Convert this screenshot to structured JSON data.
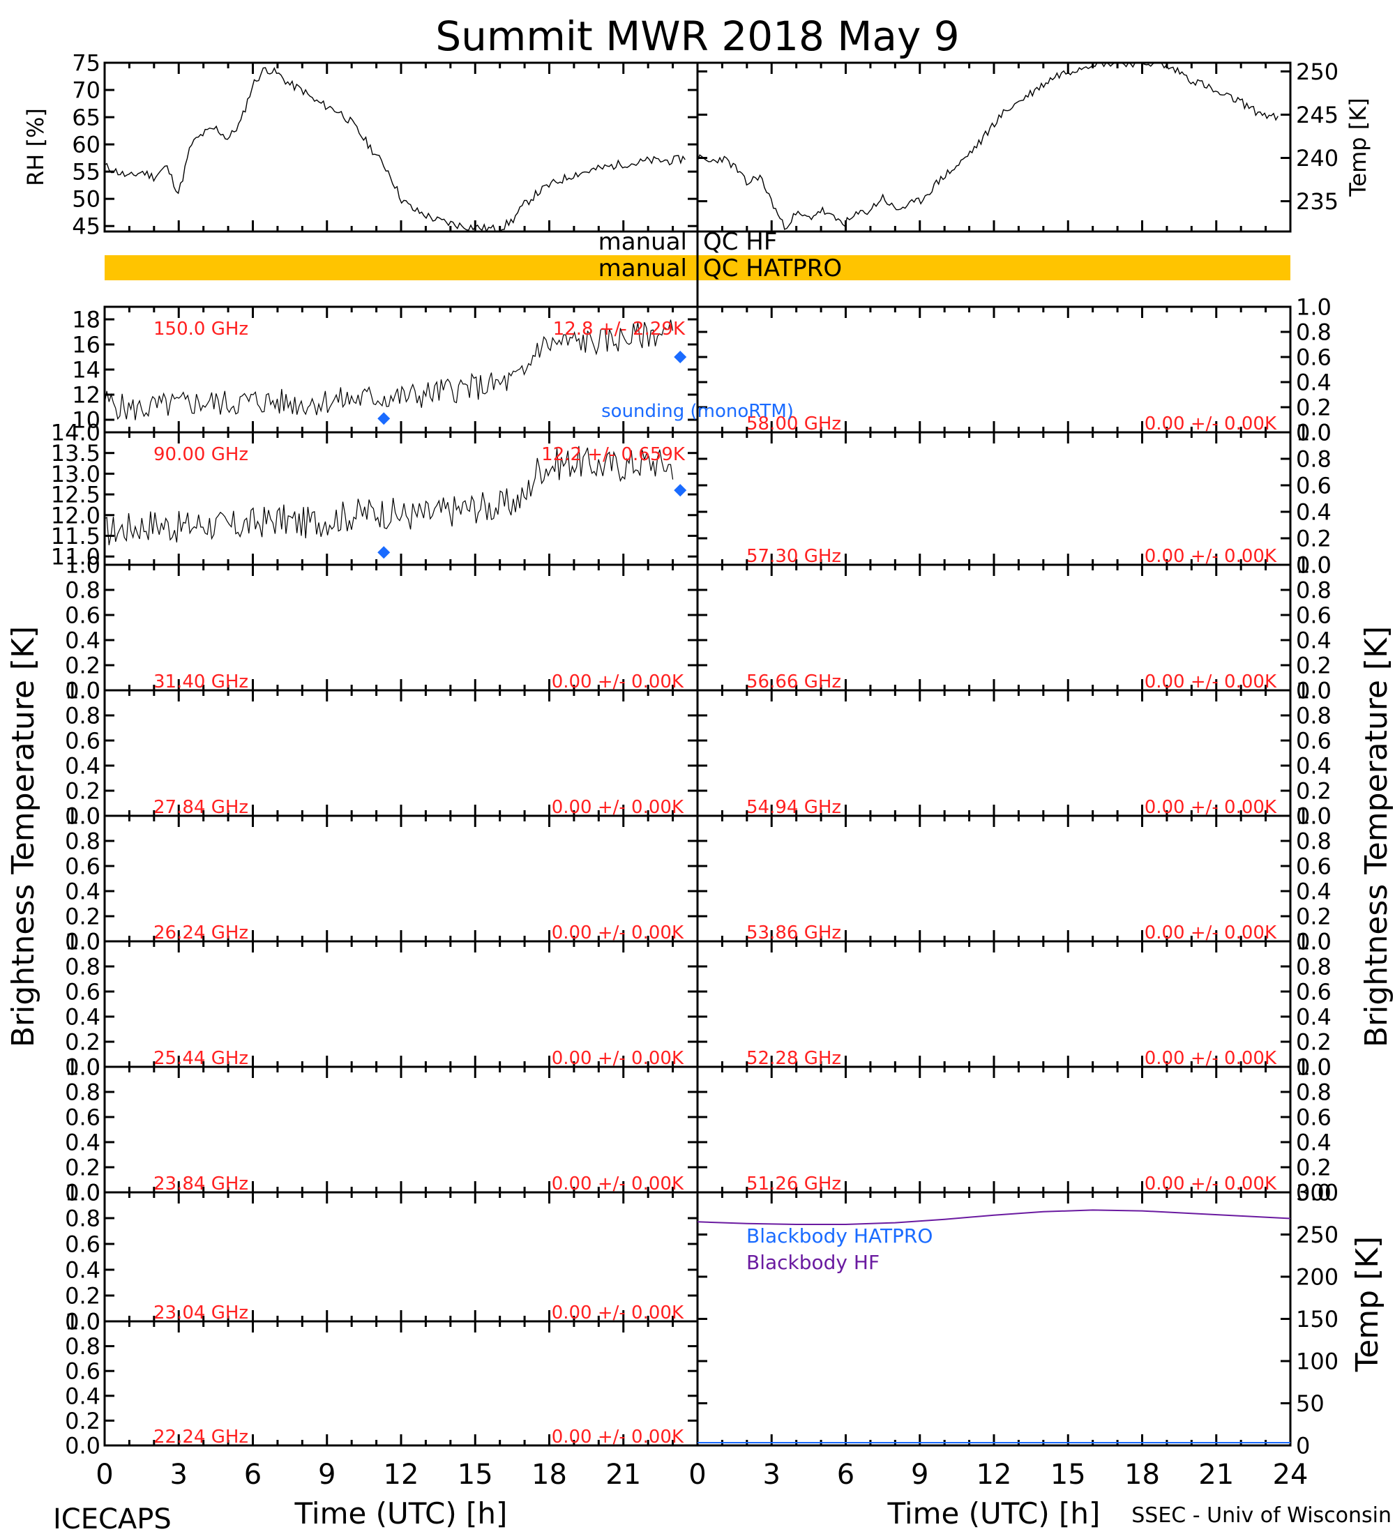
{
  "title": "Summit MWR 2018 May  9",
  "footer": {
    "left": "ICECAPS",
    "right": "SSEC - Univ of Wisconsin"
  },
  "colors": {
    "trace": "#000000",
    "label": "#ff2020",
    "sounding": "#1a6bff",
    "qc_bar": "#ffc400",
    "bb_hatpro": "#1a6bff",
    "bb_hf": "#6a1aa0"
  },
  "chart_data": [
    {
      "id": "rh",
      "type": "line",
      "ylabel": "RH [%]",
      "ylim": [
        44,
        75
      ],
      "yticks": [
        45,
        50,
        55,
        60,
        65,
        70,
        75
      ],
      "xlim": [
        0,
        24
      ],
      "x": [
        0,
        0.5,
        1,
        1.5,
        2,
        2.5,
        3,
        3.5,
        4,
        4.5,
        5,
        5.5,
        6,
        6.5,
        7,
        7.5,
        8,
        8.5,
        9,
        9.5,
        10,
        10.5,
        11,
        11.5,
        12,
        12.5,
        13,
        13.5,
        14,
        14.5,
        15,
        15.5,
        16,
        16.5,
        17,
        17.5,
        18,
        18.5,
        19,
        19.5,
        20,
        20.5,
        21,
        21.5,
        22,
        22.5,
        23,
        23.5
      ],
      "values": [
        56,
        55,
        54,
        55,
        54,
        56,
        51,
        60,
        62,
        63,
        61,
        64,
        71,
        74,
        73,
        71,
        70,
        68,
        67,
        66,
        64,
        61,
        58,
        55,
        50,
        48,
        47,
        46,
        45.5,
        45,
        44.8,
        44.5,
        44.5,
        46,
        49,
        51,
        52.5,
        53.5,
        54.5,
        55,
        55.5,
        56,
        56.5,
        56.5,
        57,
        57,
        57,
        57.5
      ]
    },
    {
      "id": "temp",
      "type": "line",
      "ylabel": "Temp [K]",
      "ylim": [
        231.5,
        251
      ],
      "yticks": [
        235,
        240,
        245,
        250
      ],
      "xlim": [
        0,
        24
      ],
      "x": [
        0,
        0.5,
        1,
        1.5,
        2,
        2.5,
        3,
        3.5,
        4,
        4.5,
        5,
        5.5,
        6,
        6.5,
        7,
        7.5,
        8,
        8.5,
        9,
        9.5,
        10,
        10.5,
        11,
        11.5,
        12,
        12.5,
        13,
        13.5,
        14,
        14.5,
        15,
        15.5,
        16,
        16.5,
        17,
        17.5,
        18,
        18.5,
        19,
        19.5,
        20,
        20.5,
        21,
        21.5,
        22,
        22.5,
        23,
        23.5
      ],
      "values": [
        240,
        239.5,
        240,
        239,
        237,
        238,
        235,
        232,
        233.5,
        233,
        234,
        233,
        232.5,
        233.5,
        234,
        235.5,
        234,
        234.5,
        235,
        236.5,
        238,
        239,
        240.5,
        242,
        244,
        245.5,
        246.5,
        247.5,
        248.5,
        249.5,
        250,
        250.5,
        251,
        251,
        251,
        251,
        251,
        251,
        250.5,
        250,
        249,
        248.5,
        247.5,
        247,
        246.5,
        245.5,
        245,
        244.5
      ]
    },
    {
      "id": "ch150",
      "type": "line",
      "label": "150.0 GHz",
      "stat": "12.8 +/- 2.29K",
      "ylim": [
        9,
        19
      ],
      "yticks": [
        10,
        12,
        14,
        16,
        18
      ],
      "xlim": [
        0,
        24
      ],
      "x": [
        0,
        1,
        2,
        3,
        4,
        5,
        6,
        7,
        8,
        9,
        10,
        11,
        12,
        13,
        14,
        15,
        16,
        17,
        17.5,
        18,
        19,
        20,
        21,
        22,
        23
      ],
      "values": [
        11.5,
        10.8,
        11,
        11.2,
        11.4,
        11.3,
        11.5,
        11.4,
        11.3,
        11.5,
        11.6,
        11.8,
        11.8,
        12,
        12.4,
        12.6,
        12.8,
        13.5,
        15.8,
        16,
        16.2,
        16.2,
        16.5,
        16.8,
        17
      ],
      "sounding": {
        "x": [
          11.3,
          23.3
        ],
        "values": [
          10.1,
          15
        ]
      }
    },
    {
      "id": "ch90",
      "type": "line",
      "label": "90.00 GHz",
      "stat": "12.2 +/- 0.659K",
      "ylim": [
        10.8,
        14
      ],
      "yticks": [
        11.0,
        11.5,
        12.0,
        12.5,
        13.0,
        13.5,
        14.0
      ],
      "xlim": [
        0,
        24
      ],
      "x": [
        0,
        1,
        2,
        3,
        4,
        5,
        6,
        7,
        8,
        9,
        10,
        11,
        12,
        13,
        14,
        15,
        16,
        17,
        17.5,
        18,
        19,
        20,
        21,
        22,
        23
      ],
      "values": [
        11.6,
        11.7,
        11.8,
        11.7,
        11.8,
        11.7,
        11.8,
        11.9,
        11.8,
        11.9,
        12,
        12.1,
        12,
        12,
        12.1,
        12.2,
        12.2,
        12.4,
        13.1,
        13.2,
        13.3,
        13.2,
        13.2,
        13.3,
        13.2
      ],
      "sounding": {
        "x": [
          11.3,
          23.3
        ],
        "values": [
          11.1,
          12.6
        ]
      }
    }
  ],
  "empty_channels": [
    {
      "left": "58.00 GHz",
      "stat": "0.00 +/- 0.00K"
    },
    {
      "left": "57.30 GHz",
      "stat": "0.00 +/- 0.00K"
    },
    {
      "left": "31.40 GHz",
      "stat": "0.00 +/- 0.00K"
    },
    {
      "left": "56.66 GHz",
      "stat": "0.00 +/- 0.00K"
    },
    {
      "left": "27.84 GHz",
      "stat": "0.00 +/- 0.00K"
    },
    {
      "left": "54.94 GHz",
      "stat": "0.00 +/- 0.00K"
    },
    {
      "left": "26.24 GHz",
      "stat": "0.00 +/- 0.00K"
    },
    {
      "left": "53.86 GHz",
      "stat": "0.00 +/- 0.00K"
    },
    {
      "left": "25.44 GHz",
      "stat": "0.00 +/- 0.00K"
    },
    {
      "left": "52.28 GHz",
      "stat": "0.00 +/- 0.00K"
    },
    {
      "left": "23.84 GHz",
      "stat": "0.00 +/- 0.00K"
    },
    {
      "left": "51.26 GHz",
      "stat": "0.00 +/- 0.00K"
    },
    {
      "left": "23.04 GHz",
      "stat": "0.00 +/- 0.00K"
    },
    {
      "left": "22.24 GHz",
      "stat": "0.00 +/- 0.00K"
    }
  ],
  "unit_ticks": [
    "0.0",
    "0.2",
    "0.4",
    "0.6",
    "0.8",
    "1.0"
  ],
  "blackbody": {
    "ylabel": "Temp [K]",
    "ylim": [
      0,
      300
    ],
    "yticks": [
      0,
      50,
      100,
      150,
      200,
      250,
      300
    ],
    "legend": [
      "Blackbody HATPRO",
      "Blackbody HF"
    ],
    "hf_x": [
      0,
      2,
      4,
      6,
      8,
      10,
      12,
      14,
      16,
      18,
      20,
      22,
      24
    ],
    "hf_values": [
      265,
      263,
      262,
      262,
      264,
      268,
      273,
      277,
      279,
      278,
      275,
      272,
      269
    ]
  },
  "qc": {
    "hf_left": "manual",
    "hf_right": "QC HF",
    "hatpro_left": "manual",
    "hatpro_right": "QC HATPRO"
  },
  "sounding_label": "sounding (monoRTM)",
  "bt_ylabel": "Brightness Temperature [K]",
  "xaxis": {
    "label": "Time (UTC) [h]",
    "ticks": [
      0,
      3,
      6,
      9,
      12,
      15,
      18,
      21,
      24
    ],
    "left_ticks": [
      "0",
      "3",
      "6",
      "9",
      "12",
      "15",
      "18",
      "21"
    ]
  }
}
